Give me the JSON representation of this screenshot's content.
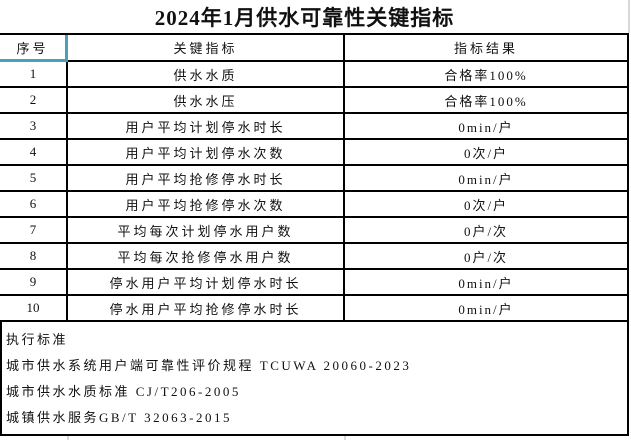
{
  "title": "2024年1月供水可靠性关键指标",
  "colors": {
    "background": "#ffffff",
    "border": "#000000",
    "text": "#111111",
    "selection": "#45a2bb",
    "gridline": "#d9d9d9"
  },
  "selection": {
    "selected_cell": "序号"
  },
  "table": {
    "headers": [
      "序号",
      "关键指标",
      "指标结果"
    ],
    "rows": [
      {
        "no": "1",
        "indicator": "供水水质",
        "result": "合格率100%"
      },
      {
        "no": "2",
        "indicator": "供水水压",
        "result": "合格率100%"
      },
      {
        "no": "3",
        "indicator": "用户平均计划停水时长",
        "result": "0min/户"
      },
      {
        "no": "4",
        "indicator": "用户平均计划停水次数",
        "result": "0次/户"
      },
      {
        "no": "5",
        "indicator": "用户平均抢修停水时长",
        "result": "0min/户"
      },
      {
        "no": "6",
        "indicator": "用户平均抢修停水次数",
        "result": "0次/户"
      },
      {
        "no": "7",
        "indicator": "平均每次计划停水用户数",
        "result": "0户/次"
      },
      {
        "no": "8",
        "indicator": "平均每次抢修停水用户数",
        "result": "0户/次"
      },
      {
        "no": "9",
        "indicator": "停水用户平均计划停水时长",
        "result": "0min/户"
      },
      {
        "no": "10",
        "indicator": "停水用户平均抢修停水时长",
        "result": "0min/户"
      }
    ]
  },
  "footer": {
    "lines": [
      "执行标准",
      "城市供水系统用户端可靠性评价规程 TCUWA 20060-2023",
      "城市供水水质标准 CJ/T206-2005",
      "城镇供水服务GB/T 32063-2015"
    ]
  }
}
